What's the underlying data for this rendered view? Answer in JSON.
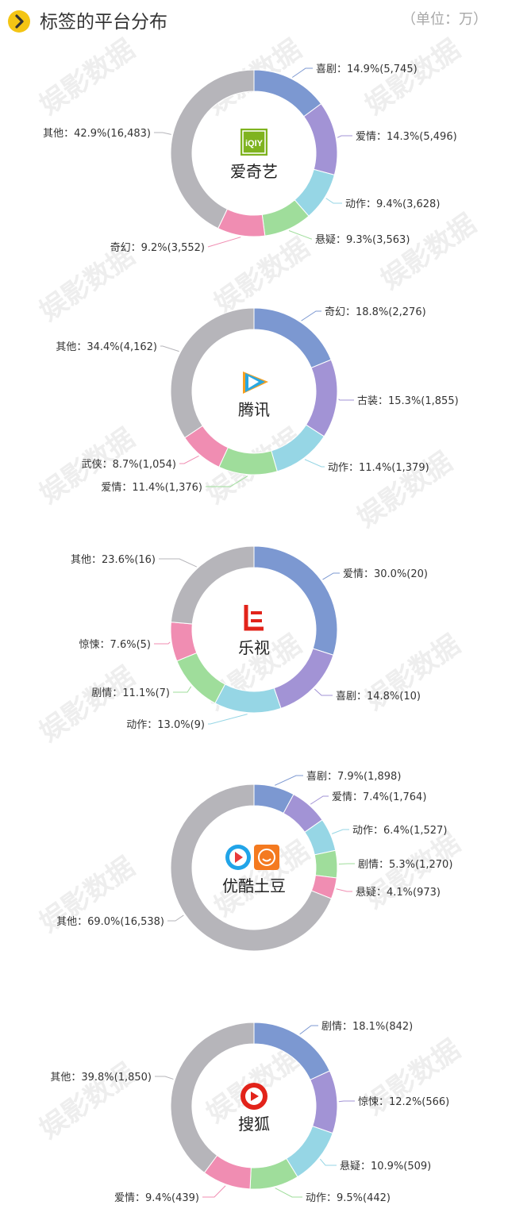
{
  "header": {
    "title": "标签的平台分布",
    "unit": "（单位：万）"
  },
  "watermark_text": "娱影数据",
  "colors": [
    "#7c98d1",
    "#a293d5",
    "#96d6e5",
    "#9fdd9b",
    "#f08db2",
    "#b6b5ba"
  ],
  "chart_data": [
    {
      "type": "pie",
      "platform": "爱奇艺",
      "logo_text": "iQIY",
      "slices": [
        {
          "label": "喜剧",
          "text": "喜剧：14.9%(5,745)",
          "percent": 14.9,
          "value": 5745
        },
        {
          "label": "爱情",
          "text": "爱情：14.3%(5,496)",
          "percent": 14.3,
          "value": 5496
        },
        {
          "label": "动作",
          "text": "动作：9.4%(3,628)",
          "percent": 9.4,
          "value": 3628
        },
        {
          "label": "悬疑",
          "text": "悬疑：9.3%(3,563)",
          "percent": 9.3,
          "value": 3563
        },
        {
          "label": "奇幻",
          "text": "奇幻：9.2%(3,552)",
          "percent": 9.2,
          "value": 3552
        },
        {
          "label": "其他",
          "text": "其他：42.9%(16,483)",
          "percent": 42.9,
          "value": 16483
        }
      ]
    },
    {
      "type": "pie",
      "platform": "腾讯",
      "slices": [
        {
          "label": "奇幻",
          "text": "奇幻：18.8%(2,276)",
          "percent": 18.8,
          "value": 2276
        },
        {
          "label": "古装",
          "text": "古装：15.3%(1,855)",
          "percent": 15.3,
          "value": 1855
        },
        {
          "label": "动作",
          "text": "动作：11.4%(1,379)",
          "percent": 11.4,
          "value": 1379
        },
        {
          "label": "爱情",
          "text": "爱情：11.4%(1,376)",
          "percent": 11.4,
          "value": 1376
        },
        {
          "label": "武侠",
          "text": "武侠：8.7%(1,054)",
          "percent": 8.7,
          "value": 1054
        },
        {
          "label": "其他",
          "text": "其他：34.4%(4,162)",
          "percent": 34.4,
          "value": 4162
        }
      ]
    },
    {
      "type": "pie",
      "platform": "乐视",
      "slices": [
        {
          "label": "爱情",
          "text": "爱情：30.0%(20)",
          "percent": 30.0,
          "value": 20
        },
        {
          "label": "喜剧",
          "text": "喜剧：14.8%(10)",
          "percent": 14.8,
          "value": 10
        },
        {
          "label": "动作",
          "text": "动作：13.0%(9)",
          "percent": 13.0,
          "value": 9
        },
        {
          "label": "剧情",
          "text": "剧情：11.1%(7)",
          "percent": 11.1,
          "value": 7
        },
        {
          "label": "惊悚",
          "text": "惊悚：7.6%(5)",
          "percent": 7.6,
          "value": 5
        },
        {
          "label": "其他",
          "text": "其他：23.6%(16)",
          "percent": 23.6,
          "value": 16
        }
      ]
    },
    {
      "type": "pie",
      "platform": "优酷土豆",
      "slices": [
        {
          "label": "喜剧",
          "text": "喜剧：7.9%(1,898)",
          "percent": 7.9,
          "value": 1898
        },
        {
          "label": "爱情",
          "text": "爱情：7.4%(1,764)",
          "percent": 7.4,
          "value": 1764
        },
        {
          "label": "动作",
          "text": "动作：6.4%(1,527)",
          "percent": 6.4,
          "value": 1527
        },
        {
          "label": "剧情",
          "text": "剧情：5.3%(1,270)",
          "percent": 5.3,
          "value": 1270
        },
        {
          "label": "悬疑",
          "text": "悬疑：4.1%(973)",
          "percent": 4.1,
          "value": 973
        },
        {
          "label": "其他",
          "text": "其他：69.0%(16,538)",
          "percent": 69.0,
          "value": 16538
        }
      ]
    },
    {
      "type": "pie",
      "platform": "搜狐",
      "slices": [
        {
          "label": "剧情",
          "text": "剧情：18.1%(842)",
          "percent": 18.1,
          "value": 842
        },
        {
          "label": "惊悚",
          "text": "惊悚：12.2%(566)",
          "percent": 12.2,
          "value": 566
        },
        {
          "label": "悬疑",
          "text": "悬疑：10.9%(509)",
          "percent": 10.9,
          "value": 509
        },
        {
          "label": "动作",
          "text": "动作：9.5%(442)",
          "percent": 9.5,
          "value": 442
        },
        {
          "label": "爱情",
          "text": "爱情：9.4%(439)",
          "percent": 9.4,
          "value": 439
        },
        {
          "label": "其他",
          "text": "其他：39.8%(1,850)",
          "percent": 39.8,
          "value": 1850
        }
      ]
    }
  ]
}
